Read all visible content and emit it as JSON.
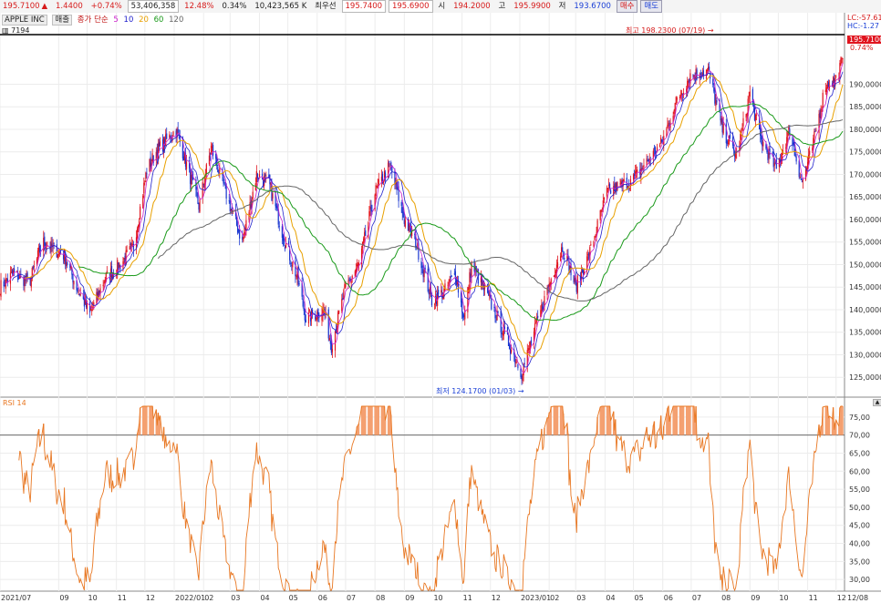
{
  "quote": {
    "price": "195.7100",
    "arrow": "▲",
    "change": "1.4400",
    "change_pct": "+0.74%",
    "volume": "53,406,358",
    "vol_ratio": "12.48%",
    "turnover_pct": "0.34%",
    "amount": "10,423,565 K",
    "best_label": "최우선",
    "ask": "195.7400",
    "bid": "195.6900",
    "open_label": "시",
    "open": "194.2000",
    "high_label": "고",
    "high": "195.9900",
    "low_label": "저",
    "low": "193.6700",
    "buy_label": "매수",
    "sell_label": "매도"
  },
  "legend": {
    "name": "APPLE INC",
    "daily": "매출",
    "ma_label": "종가 단순",
    "ma_periods": [
      "5",
      "10",
      "20",
      "60",
      "120"
    ],
    "ma_colors": [
      "#cc22cc",
      "#2222cc",
      "#e8a000",
      "#1a9a1a",
      "#666666"
    ],
    "code": "7194"
  },
  "indicator": {
    "label": "RSI 14"
  },
  "annotations": {
    "high": "최고 198.2300 (07/19)",
    "low": "최저 124.1700 (01/03)",
    "lc": "LC:-57.61",
    "hc": "HC:-1.27",
    "price_tag": "195.7100",
    "pct_tag": "0.74%"
  },
  "colors": {
    "up": "#e0141e",
    "down": "#1a36d0",
    "rsi": "#e87722"
  },
  "chart_data": [
    {
      "type": "candlestick",
      "title": "",
      "ylim": [
        121,
        201
      ],
      "y_ticks": [
        "125,0000",
        "130,0000",
        "135,0000",
        "140,0000",
        "145,0000",
        "150,0000",
        "155,0000",
        "160,0000",
        "165,0000",
        "170,0000",
        "175,0000",
        "180,0000",
        "185,0000",
        "190,0000"
      ],
      "x_ticks": [
        "2021/07",
        "09",
        "10",
        "11",
        "12",
        "2022/01",
        "02",
        "03",
        "04",
        "05",
        "06",
        "07",
        "08",
        "09",
        "10",
        "11",
        "12",
        "2023/01",
        "02",
        "03",
        "04",
        "05",
        "06",
        "07",
        "08",
        "09",
        "10",
        "11",
        "12",
        "12/08"
      ],
      "close_path": {
        "dates": [
          "2021-07-01",
          "2021-07-15",
          "2021-08-01",
          "2021-08-15",
          "2021-09-07",
          "2021-09-20",
          "2021-10-04",
          "2021-10-20",
          "2021-11-05",
          "2021-11-19",
          "2021-12-03",
          "2021-12-13",
          "2022-01-03",
          "2022-01-27",
          "2022-02-09",
          "2022-03-01",
          "2022-03-14",
          "2022-03-29",
          "2022-04-11",
          "2022-04-28",
          "2022-05-11",
          "2022-05-20",
          "2022-06-08",
          "2022-06-16",
          "2022-07-01",
          "2022-07-15",
          "2022-08-01",
          "2022-08-17",
          "2022-09-01",
          "2022-09-13",
          "2022-09-30",
          "2022-10-13",
          "2022-10-25",
          "2022-11-03",
          "2022-11-11",
          "2022-11-30",
          "2022-12-15",
          "2023-01-03",
          "2023-01-31",
          "2023-02-15",
          "2023-03-01",
          "2023-03-15",
          "2023-04-03",
          "2023-05-01",
          "2023-05-31",
          "2023-06-15",
          "2023-06-30",
          "2023-07-19",
          "2023-08-03",
          "2023-08-18",
          "2023-09-01",
          "2023-09-12",
          "2023-09-29",
          "2023-10-13",
          "2023-10-26",
          "2023-11-06",
          "2023-11-20",
          "2023-12-01",
          "2023-12-08"
        ],
        "close": [
          145,
          148,
          146,
          155,
          152,
          145,
          139,
          147,
          150,
          154,
          171,
          175,
          180,
          163,
          176,
          163,
          155,
          170,
          168,
          155,
          147,
          138,
          140,
          132,
          145,
          150,
          166,
          172,
          160,
          155,
          142,
          144,
          148,
          138,
          150,
          142,
          135,
          126,
          145,
          154,
          145,
          152,
          166,
          169,
          177,
          186,
          192,
          193,
          180,
          174,
          188,
          178,
          171,
          180,
          168,
          176,
          190,
          191,
          195.7
        ]
      },
      "series": [
        {
          "name": "5",
          "values": "moving average of close, period 5"
        },
        {
          "name": "10",
          "values": "moving average of close, period 10"
        },
        {
          "name": "20",
          "values": "moving average of close, period 20"
        },
        {
          "name": "60",
          "values": "moving average of close, period 60"
        },
        {
          "name": "120",
          "values": "moving average of close, period 120"
        }
      ],
      "last_close": 195.71,
      "high_close": 198.23,
      "low_close": 124.17
    },
    {
      "type": "line",
      "title": "",
      "ylim": [
        27,
        78
      ],
      "y_ticks": [
        "30,00",
        "35,00",
        "40,00",
        "45,00",
        "50,00",
        "55,00",
        "60,00",
        "65,00",
        "70,00",
        "75,00"
      ],
      "series": [
        {
          "name": "RSI 14",
          "values": "14-period RSI of close"
        }
      ],
      "reference_line": 70
    }
  ]
}
